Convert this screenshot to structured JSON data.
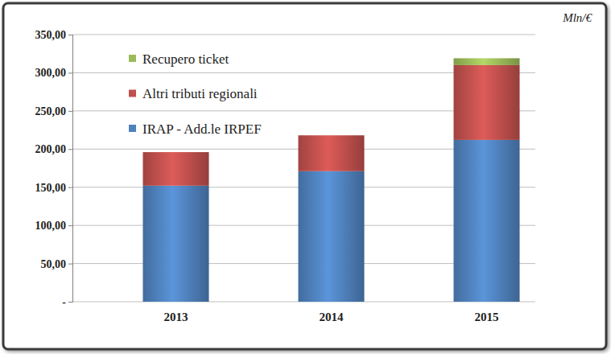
{
  "chart_data": {
    "type": "bar",
    "stacked": true,
    "ylabel": "Mln/€",
    "categories": [
      "2013",
      "2014",
      "2015"
    ],
    "series": [
      {
        "name": "IRAP - Add.le IRPEF",
        "color": "#4f81bd",
        "values": [
          152,
          171,
          212
        ]
      },
      {
        "name": "Altri tributi regionali",
        "color": "#c0504d",
        "values": [
          44,
          47,
          98
        ]
      },
      {
        "name": "Recupero ticket",
        "color": "#9bbb59",
        "values": [
          0,
          0,
          9
        ]
      }
    ],
    "ylim": [
      0,
      350
    ],
    "yticks": [
      {
        "value": 0,
        "label": "-"
      },
      {
        "value": 50,
        "label": "50,00"
      },
      {
        "value": 100,
        "label": "100,00"
      },
      {
        "value": 150,
        "label": "150,00"
      },
      {
        "value": 200,
        "label": "200,00"
      },
      {
        "value": 250,
        "label": "250,00"
      },
      {
        "value": 300,
        "label": "300,00"
      },
      {
        "value": 350,
        "label": "350,00"
      }
    ],
    "grid": true,
    "legend": "upper left"
  }
}
